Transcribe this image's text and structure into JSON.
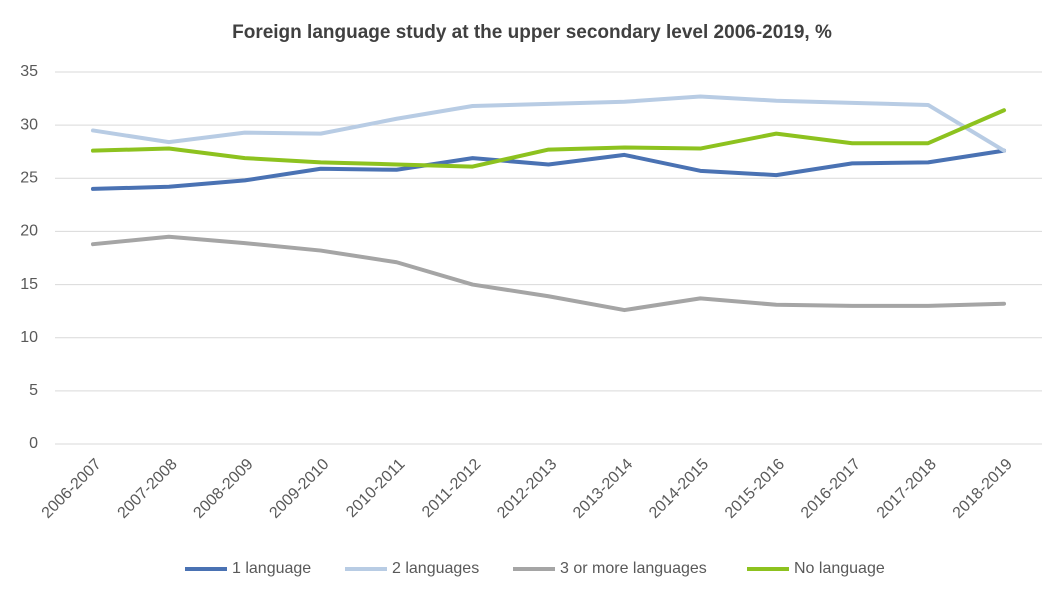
{
  "chart_data": {
    "type": "line",
    "title": "Foreign language study at the upper secondary level 2006-2019, %",
    "categories": [
      "2006-2007",
      "2007-2008",
      "2008-2009",
      "2009-2010",
      "2010-2011",
      "2011-2012",
      "2012-2013",
      "2013-2014",
      "2014-2015",
      "2015-2016",
      "2016-2017",
      "2017-2018",
      "2018-2019"
    ],
    "series": [
      {
        "name": "1 language",
        "color": "#4a72b3",
        "values": [
          24.0,
          24.2,
          24.8,
          25.9,
          25.8,
          26.9,
          26.3,
          27.2,
          25.7,
          25.3,
          26.4,
          26.5,
          27.6
        ]
      },
      {
        "name": "2 languages",
        "color": "#b8cce4",
        "values": [
          29.5,
          28.4,
          29.3,
          29.2,
          30.6,
          31.8,
          32.0,
          32.2,
          32.7,
          32.3,
          32.1,
          31.9,
          27.6
        ]
      },
      {
        "name": "3 or more languages",
        "color": "#a5a5a5",
        "values": [
          18.8,
          19.5,
          18.9,
          18.2,
          17.1,
          15.0,
          13.9,
          12.6,
          13.7,
          13.1,
          13.0,
          13.0,
          13.2
        ]
      },
      {
        "name": "No language",
        "color": "#8dc21f",
        "values": [
          27.6,
          27.8,
          26.9,
          26.5,
          26.3,
          26.1,
          27.7,
          27.9,
          27.8,
          29.2,
          28.3,
          28.3,
          31.4
        ]
      }
    ],
    "ylim": [
      0,
      35
    ],
    "yticks": [
      0,
      5,
      10,
      15,
      20,
      25,
      30,
      35
    ],
    "grid": true,
    "legend": "bottom"
  }
}
